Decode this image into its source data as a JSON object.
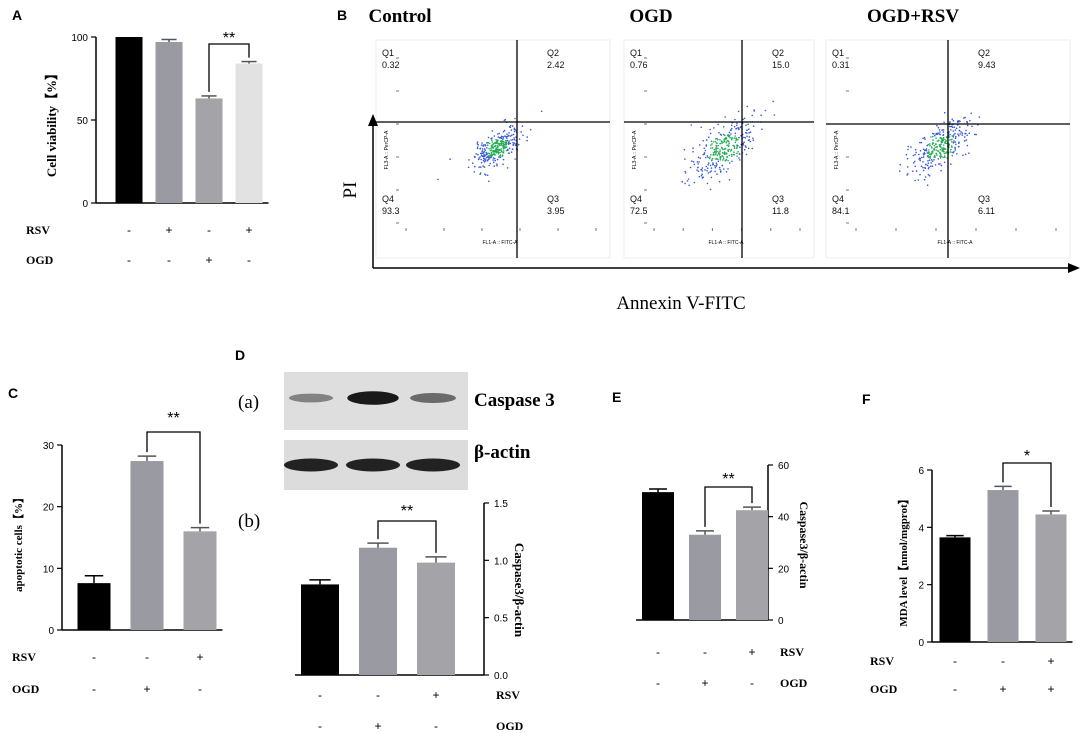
{
  "panel_labels": {
    "A": "A",
    "B": "B",
    "C": "C",
    "D": "D",
    "E": "E",
    "F": "F"
  },
  "colors": {
    "black": "#000000",
    "dark_gray": "#9a9aa2",
    "mid_gray": "#a3a3a8",
    "light_gray": "#e2e2e2",
    "dot_blue": "#3355dd",
    "dot_green": "#22aa55"
  },
  "chart_data": [
    {
      "id": "A",
      "type": "bar",
      "ylabel": "Cell viability【%】",
      "ylim": [
        0,
        100
      ],
      "yticks": [
        "0",
        "50",
        "100"
      ],
      "values": [
        100,
        97,
        63,
        84
      ],
      "errors": [
        0,
        1.5,
        1.5,
        1.2
      ],
      "bar_colors": [
        "#000000",
        "#9a9aa2",
        "#a3a3a8",
        "#e2e2e2"
      ],
      "significance": {
        "between": [
          2,
          3
        ],
        "label": "**"
      },
      "conditions": [
        {
          "name": "RSV",
          "signs": [
            "-",
            "+",
            "-",
            "+"
          ]
        },
        {
          "name": "OGD",
          "signs": [
            "-",
            "-",
            "+",
            "-"
          ]
        }
      ]
    },
    {
      "id": "C",
      "type": "bar",
      "ylabel": "apoptotic cells【%】",
      "ylim": [
        0,
        30
      ],
      "yticks": [
        "0",
        "10",
        "20",
        "30"
      ],
      "values": [
        7.6,
        27.4,
        16.0
      ],
      "errors": [
        1.2,
        0.8,
        0.6
      ],
      "bar_colors": [
        "#000000",
        "#9a9aa2",
        "#a3a3a8"
      ],
      "significance": {
        "between": [
          1,
          2
        ],
        "label": "**"
      },
      "conditions": [
        {
          "name": "RSV",
          "signs": [
            "-",
            "-",
            "+"
          ]
        },
        {
          "name": "OGD",
          "signs": [
            "-",
            "+",
            "-"
          ]
        }
      ]
    },
    {
      "id": "Db",
      "type": "bar",
      "ylabel": "Caspase3/β-actin",
      "ylim": [
        0,
        1.5
      ],
      "yticks": [
        "0.0",
        "0.5",
        "1.0",
        "1.5"
      ],
      "values": [
        0.79,
        1.11,
        0.98
      ],
      "errors": [
        0.04,
        0.04,
        0.05
      ],
      "bar_colors": [
        "#000000",
        "#9a9aa2",
        "#a3a3a8"
      ],
      "significance": {
        "between": [
          1,
          2
        ],
        "label": "**"
      },
      "conditions": [
        {
          "name": "RSV",
          "signs": [
            "-",
            "-",
            "+"
          ]
        },
        {
          "name": "OGD",
          "signs": [
            "-",
            "+",
            "-"
          ]
        }
      ]
    },
    {
      "id": "E",
      "type": "bar",
      "ylabel": "Caspase3/β-actin",
      "ylim": [
        0,
        60
      ],
      "yticks": [
        "0",
        "20",
        "40",
        "60"
      ],
      "values": [
        49.5,
        33,
        42.5
      ],
      "errors": [
        1.2,
        1.5,
        1.2
      ],
      "bar_colors": [
        "#000000",
        "#9a9aa2",
        "#a3a3a8"
      ],
      "significance": {
        "between": [
          1,
          2
        ],
        "label": "**"
      },
      "conditions": [
        {
          "name": "RSV",
          "signs": [
            "-",
            "-",
            "+"
          ]
        },
        {
          "name": "OGD",
          "signs": [
            "-",
            "+",
            "-"
          ]
        }
      ]
    },
    {
      "id": "F",
      "type": "bar",
      "ylabel": "MDA level【nmol/mgprot】",
      "ylim": [
        0,
        6
      ],
      "yticks": [
        "0",
        "2",
        "4",
        "6"
      ],
      "values": [
        3.65,
        5.3,
        4.45
      ],
      "errors": [
        0.06,
        0.13,
        0.12
      ],
      "bar_colors": [
        "#000000",
        "#9a9aa2",
        "#a3a3a8"
      ],
      "significance": {
        "between": [
          1,
          2
        ],
        "label": "*"
      },
      "conditions": [
        {
          "name": "RSV",
          "signs": [
            "-",
            "-",
            "+"
          ]
        },
        {
          "name": "OGD",
          "signs": [
            "-",
            "+",
            "+"
          ]
        }
      ]
    }
  ],
  "flow": {
    "yaxis_label": "PI",
    "xaxis_label": "Annexin V-FITC",
    "x_channel": "FL1-A :: FITC-A",
    "y_channel": "FL3-A :: PerCP-A",
    "plots": [
      {
        "title": "Control",
        "quadrants": {
          "Q1": "0.32",
          "Q2": "2.42",
          "Q3": "3.95",
          "Q4": "93.3"
        }
      },
      {
        "title": "OGD",
        "quadrants": {
          "Q1": "0.76",
          "Q2": "15.0",
          "Q3": "11.8",
          "Q4": "72.5"
        }
      },
      {
        "title": "OGD+RSV",
        "quadrants": {
          "Q1": "0.31",
          "Q2": "9.43",
          "Q3": "6.11",
          "Q4": "84.1"
        }
      }
    ]
  },
  "western": {
    "row_a_label": "(a)",
    "row_b_label": "(b)",
    "bands": [
      {
        "name": "Caspase 3",
        "intensity": [
          0.35,
          0.95,
          0.5
        ]
      },
      {
        "name": "β-actin",
        "intensity": [
          0.9,
          0.9,
          0.9
        ]
      }
    ]
  }
}
